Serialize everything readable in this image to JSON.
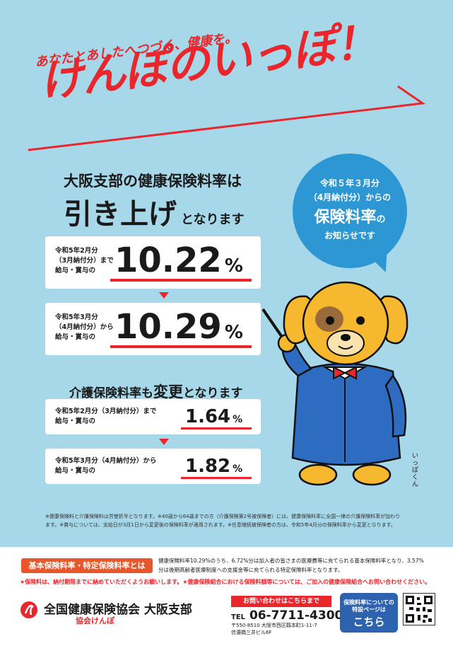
{
  "header": {
    "tagline": "あなたとあしたへつづく、健康を。",
    "title": "けんぽのいっぽ！"
  },
  "bubble": {
    "line1": "令和５年３月分",
    "line2": "（4月納付分）からの",
    "line3": "保険料率",
    "line3_suffix": "の",
    "line4": "お知らせです"
  },
  "headline": {
    "line1": "大阪支部の健康保険料率は",
    "line2_main": "引き上げ",
    "line2_suffix": "となります"
  },
  "health_rates": [
    {
      "label_lines": [
        "令和5年2月分",
        "（3月納付分）まで",
        "給与・賞与の"
      ],
      "value": "10.22",
      "unit": "%"
    },
    {
      "label_lines": [
        "令和5年3月分",
        "（4月納付分）から",
        "給与・賞与の"
      ],
      "value": "10.29",
      "unit": "%"
    }
  ],
  "kaigo": {
    "heading_pre": "介護保険料率も",
    "heading_hl": "変更",
    "heading_post": "となります",
    "rates": [
      {
        "label_lines": [
          "令和5年2月分（3月納付分）まで",
          "給与・賞与の"
        ],
        "value": "1.64",
        "unit": "%"
      },
      {
        "label_lines": [
          "令和5年3月分（4月納付分）から",
          "給与・賞与の"
        ],
        "value": "1.82",
        "unit": "%"
      }
    ]
  },
  "mascot": {
    "name": "いっぽくん"
  },
  "notes": [
    "※健康保険料と介護保険料は労使折半となります。※40歳から64歳までの方（介護保険第2号被保険者）には、健康保険料率に全国一律の介護保険料率が加わり",
    "ます。※賞与については、支給日が3月1日から変更後の保険料率が適用されます。※任意継続被保険者の方は、令和5年4月分の保険料率から変更となります。"
  ],
  "footer": {
    "basic_label": "基本保険料率・特定保険料率とは",
    "basic_desc_lines": [
      "健康保険料率10.29%のうち、6.72%分は加入者の皆さまの医療費等に充てられる基本保険料率となり、3.57%",
      "分は後期高齢者医療制度への支援金等に充てられる特定保険料率となります。"
    ],
    "red_note": "★保険料は、納付期限までに納めていただくようお願いします。★健康保険組合における保険料額等については、ご加入の健康保険組合へお問い合わせください。",
    "org_name": "全国健康保険協会 大阪支部",
    "org_sub": "協会けんぽ",
    "contact_label": "お問い合わせはこちらまで",
    "tel_prefix": "TEL",
    "tel": "06-7711-4300",
    "address_line1": "〒550-8510 大阪市西区靱本町1-11-7",
    "address_line2": "信濃橋三井ビル6F",
    "special_line1": "保険料率についての",
    "special_line2": "特設ページは",
    "special_line3": "こちら"
  },
  "colors": {
    "sky": "#a6d8ea",
    "red": "#e8262c",
    "blue": "#2d97d3",
    "navy": "#2d62ae",
    "orange": "#e8572c"
  }
}
